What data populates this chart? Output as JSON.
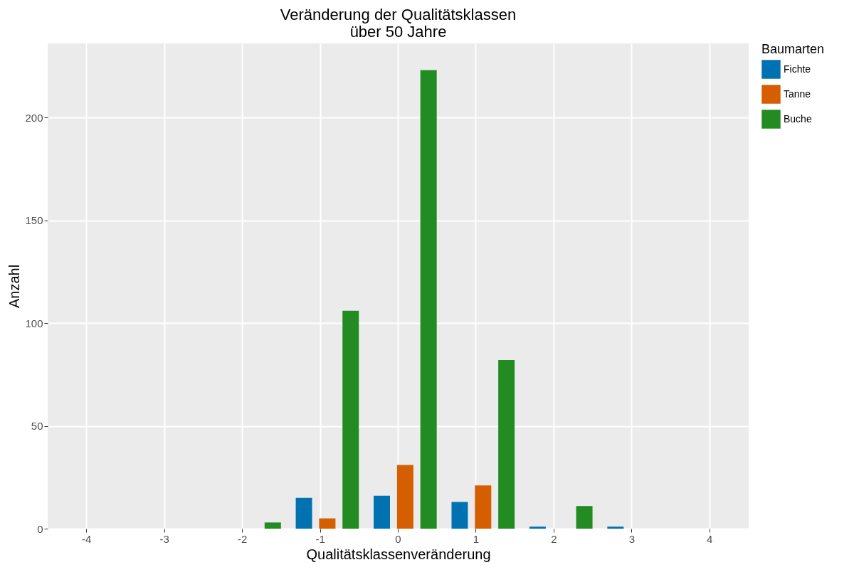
{
  "chart_data": {
    "type": "bar",
    "title": "Veränderung der Qualitätsklassen\nüber 50 Jahre",
    "xlabel": "Qualitätsklassenveränderung",
    "ylabel": "Anzahl",
    "legend_title": "Baumarten",
    "legend": "right",
    "grid": true,
    "categories": [
      "-4",
      "-3",
      "-2",
      "-1",
      "0",
      "1",
      "2",
      "3",
      "4"
    ],
    "ylim": [
      0,
      236
    ],
    "yticks": [
      0,
      50,
      100,
      150,
      200
    ],
    "series": [
      {
        "name": "Fichte",
        "color": "#0072b2",
        "values": [
          null,
          null,
          null,
          15,
          16,
          13,
          1,
          1,
          null
        ]
      },
      {
        "name": "Tanne",
        "color": "#d55e00",
        "values": [
          null,
          null,
          null,
          5,
          31,
          21,
          null,
          null,
          null
        ]
      },
      {
        "name": "Buche",
        "color": "#228b22",
        "values": [
          null,
          null,
          3,
          106,
          223,
          82,
          11,
          null,
          null
        ]
      }
    ]
  }
}
